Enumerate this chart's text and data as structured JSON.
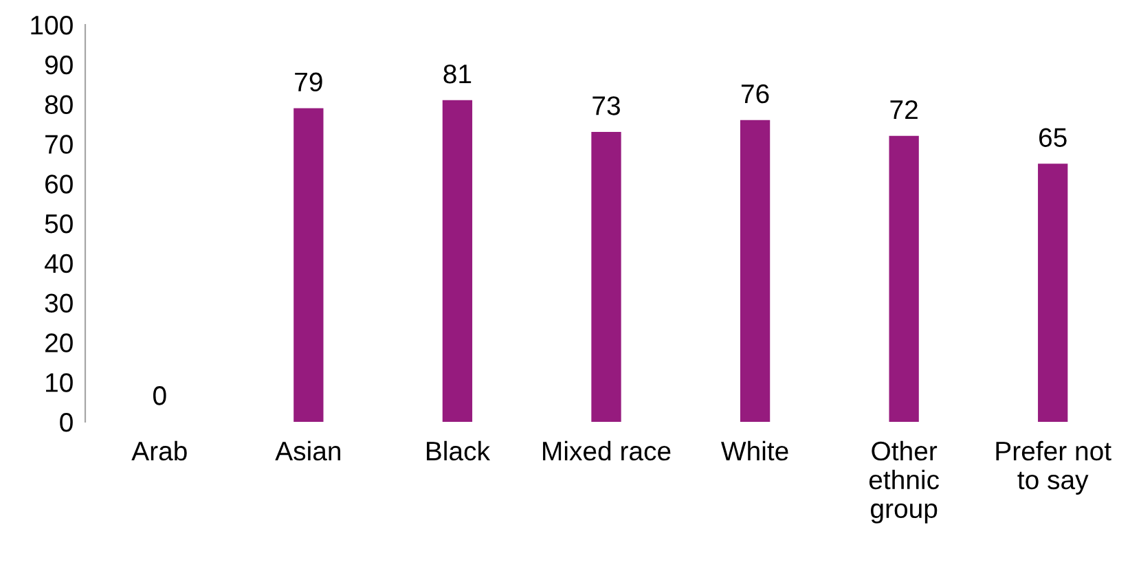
{
  "chart_data": {
    "type": "bar",
    "categories": [
      "Arab",
      "Asian",
      "Black",
      "Mixed race",
      "White",
      "Other\nethnic\ngroup",
      "Prefer not\nto say"
    ],
    "values": [
      0,
      79,
      81,
      73,
      76,
      72,
      65
    ],
    "color": "#961b7e",
    "ylim": [
      0,
      100
    ],
    "yticks": [
      0,
      10,
      20,
      30,
      40,
      50,
      60,
      70,
      80,
      90,
      100
    ],
    "data_labels": true,
    "grid": false
  }
}
